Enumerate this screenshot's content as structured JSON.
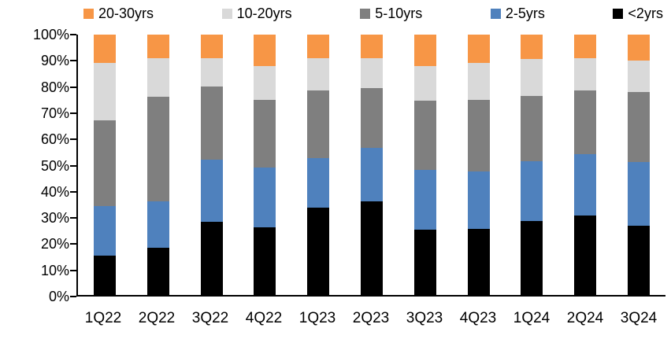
{
  "chart_data": {
    "type": "bar",
    "stacked": true,
    "percent_stacked": true,
    "title": "",
    "xlabel": "",
    "ylabel": "",
    "grid": false,
    "legend": {
      "position": "top",
      "order": [
        "20-30yrs",
        "10-20yrs",
        "5-10yrs",
        "2-5yrs",
        "<2yrs"
      ]
    },
    "categories": [
      "1Q22",
      "2Q22",
      "3Q22",
      "4Q22",
      "1Q23",
      "2Q23",
      "3Q23",
      "4Q23",
      "1Q24",
      "2Q24",
      "3Q24"
    ],
    "series": [
      {
        "name": "<2yrs",
        "color": "#000000",
        "values": [
          15,
          18,
          28,
          26,
          33.5,
          36,
          25,
          25.5,
          28.5,
          30.5,
          26.5
        ]
      },
      {
        "name": "2-5yrs",
        "color": "#4F81BD",
        "values": [
          19,
          18,
          24,
          23,
          19,
          20.5,
          23,
          22,
          23,
          23.5,
          24.5
        ]
      },
      {
        "name": "5-10yrs",
        "color": "#7F7F7F",
        "values": [
          33,
          40,
          28,
          26,
          26,
          23,
          26.5,
          27.5,
          25,
          24.5,
          27
        ]
      },
      {
        "name": "10-20yrs",
        "color": "#D9D9D9",
        "values": [
          22,
          15,
          11,
          13,
          12.5,
          11.5,
          13.5,
          14,
          14,
          12.5,
          12
        ]
      },
      {
        "name": "20-30yrs",
        "color": "#F79646",
        "values": [
          11,
          9,
          9,
          12,
          9,
          9,
          12,
          11,
          9.5,
          9,
          10
        ]
      }
    ],
    "y_axis": {
      "min": 0,
      "max": 100,
      "step": 10,
      "tick_labels": [
        "0%",
        "10%",
        "20%",
        "30%",
        "40%",
        "50%",
        "60%",
        "70%",
        "80%",
        "90%",
        "100%"
      ]
    }
  },
  "colors": {
    "axis": "#000000",
    "background": "#ffffff",
    "text": "#000000"
  }
}
